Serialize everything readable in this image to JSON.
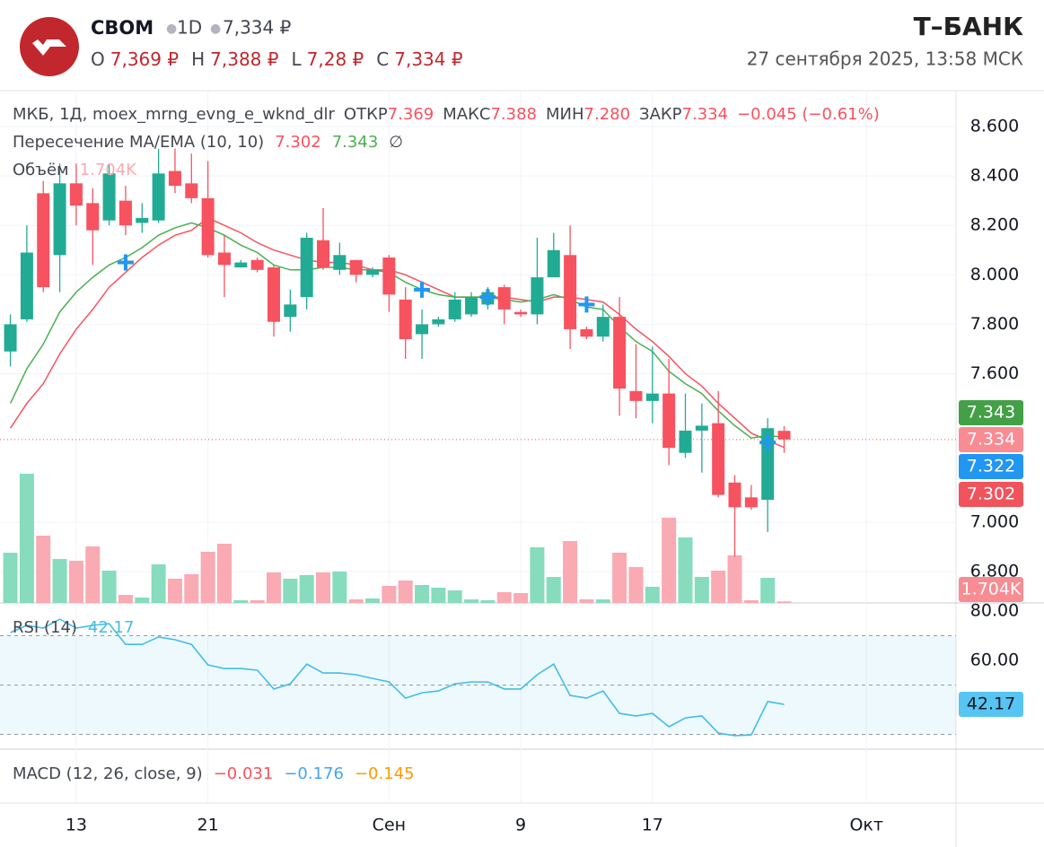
{
  "header": {
    "ticker": "CBOM",
    "interval": "1D",
    "price": "7,334 ₽",
    "ohlc": [
      {
        "label": "O",
        "value": "7,369 ₽"
      },
      {
        "label": "H",
        "value": "7,388 ₽"
      },
      {
        "label": "L",
        "value": "7,28 ₽"
      },
      {
        "label": "C",
        "value": "7,334 ₽"
      }
    ],
    "brand": "Т–БАНК",
    "datetime": "27 сентября 2025, 13:58 МСК"
  },
  "chart_data": [
    {
      "type": "candlestick",
      "up_color": "#22ab94",
      "down_color": "#f7525f",
      "legend": {
        "symbol": "МКБ, 1Д, moex_mrng_evng_e_wknd_dlr",
        "fields": [
          {
            "name": "ОТКР",
            "value": "7.369"
          },
          {
            "name": "МАКС",
            "value": "7.388"
          },
          {
            "name": "МИН",
            "value": "7.280"
          },
          {
            "name": "ЗАКР",
            "value": "7.334"
          }
        ],
        "change": "−0.045 (−0.61%)"
      },
      "indicator": {
        "title": "Пересечение MA/EMA (10, 10)",
        "values": [
          "7.302",
          "7.343"
        ],
        "symbol": "∅"
      },
      "open": [
        7.69,
        7.82,
        8.33,
        8.08,
        8.37,
        8.29,
        8.22,
        8.3,
        8.21,
        8.22,
        8.42,
        8.37,
        8.31,
        8.09,
        8.03,
        8.06,
        8.03,
        7.83,
        7.91,
        8.14,
        8.02,
        8.06,
        8.0,
        8.07,
        7.9,
        7.76,
        7.8,
        7.82,
        7.84,
        7.88,
        7.95,
        7.85,
        7.84,
        7.99,
        8.08,
        7.78,
        7.75,
        7.83,
        7.53,
        7.49,
        7.52,
        7.28,
        7.37,
        7.4,
        7.16,
        7.1,
        7.09,
        7.369
      ],
      "high": [
        7.84,
        8.2,
        8.38,
        8.45,
        8.45,
        8.35,
        8.45,
        8.36,
        8.29,
        8.51,
        8.51,
        8.49,
        8.46,
        8.16,
        8.06,
        8.07,
        8.04,
        7.94,
        8.17,
        8.27,
        8.13,
        8.06,
        8.03,
        8.08,
        7.95,
        7.86,
        7.83,
        7.93,
        7.93,
        7.95,
        7.96,
        7.86,
        8.15,
        8.17,
        8.2,
        7.79,
        7.88,
        7.91,
        7.72,
        7.71,
        7.66,
        7.52,
        7.48,
        7.53,
        7.19,
        7.15,
        7.42,
        7.388
      ],
      "low": [
        7.63,
        7.81,
        7.93,
        7.93,
        8.2,
        8.04,
        8.2,
        8.16,
        8.17,
        8.21,
        8.33,
        8.29,
        8.07,
        7.91,
        8.03,
        8.01,
        7.75,
        7.77,
        7.86,
        8.02,
        8.0,
        7.97,
        7.99,
        7.85,
        7.66,
        7.66,
        7.79,
        7.81,
        7.83,
        7.86,
        7.8,
        7.83,
        7.8,
        7.99,
        7.7,
        7.74,
        7.73,
        7.43,
        7.42,
        7.4,
        7.23,
        7.26,
        7.2,
        7.1,
        6.86,
        7.05,
        6.96,
        7.28
      ],
      "close": [
        7.8,
        8.09,
        7.95,
        8.37,
        8.28,
        8.18,
        8.41,
        8.2,
        8.23,
        8.41,
        8.36,
        8.31,
        8.08,
        8.04,
        8.05,
        8.02,
        7.81,
        7.88,
        8.15,
        8.03,
        8.08,
        8.0,
        8.02,
        7.92,
        7.74,
        7.8,
        7.82,
        7.9,
        7.91,
        7.93,
        7.86,
        7.84,
        7.99,
        8.1,
        7.78,
        7.75,
        7.83,
        7.54,
        7.49,
        7.52,
        7.3,
        7.37,
        7.39,
        7.11,
        7.06,
        7.06,
        7.38,
        7.334
      ],
      "series": [
        {
          "color": "#f7525f",
          "values": [
            7.38,
            7.48,
            7.56,
            7.68,
            7.78,
            7.86,
            7.95,
            8.01,
            8.07,
            8.12,
            8.16,
            8.18,
            8.23,
            8.2,
            8.17,
            8.13,
            8.1,
            8.08,
            8.06,
            8.05,
            8.05,
            8.04,
            8.02,
            8.02,
            8.0,
            7.97,
            7.94,
            7.91,
            7.91,
            7.91,
            7.91,
            7.9,
            7.89,
            7.91,
            7.91,
            7.9,
            7.89,
            7.84,
            7.78,
            7.73,
            7.67,
            7.6,
            7.55,
            7.48,
            7.42,
            7.36,
            7.33,
            7.302
          ]
        },
        {
          "color": "#4caf50",
          "values": [
            7.48,
            7.62,
            7.72,
            7.85,
            7.93,
            7.99,
            8.04,
            8.07,
            8.11,
            8.16,
            8.19,
            8.21,
            8.19,
            8.16,
            8.12,
            8.09,
            8.04,
            8.02,
            8.02,
            8.03,
            8.03,
            8.02,
            8.02,
            8.01,
            7.97,
            7.94,
            7.92,
            7.91,
            7.91,
            7.91,
            7.9,
            7.89,
            7.9,
            7.92,
            7.9,
            7.87,
            7.86,
            7.79,
            7.73,
            7.69,
            7.61,
            7.56,
            7.52,
            7.45,
            7.39,
            7.34,
            7.35,
            7.343
          ]
        }
      ],
      "crosses": {
        "color": "#2196f3",
        "x": [
          7,
          25,
          29,
          35,
          46
        ],
        "values": [
          8.05,
          7.94,
          7.91,
          7.88,
          7.322
        ],
        "label": "7.322"
      },
      "volume": {
        "title": "Объём",
        "label": "1.704K",
        "up_color": "#86dcbd",
        "down_color": "#f9aab2",
        "vlim": [
          0,
          250000
        ],
        "values": [
          56000,
          144000,
          75000,
          49000,
          47000,
          63000,
          36000,
          9000,
          6000,
          43000,
          27000,
          32000,
          57000,
          66000,
          3000,
          3000,
          34000,
          27000,
          31000,
          34000,
          35000,
          4000,
          5000,
          19000,
          25000,
          20000,
          17000,
          14000,
          4000,
          3000,
          12000,
          11000,
          62000,
          29000,
          69000,
          4000,
          4000,
          56000,
          40000,
          18000,
          95000,
          73000,
          29000,
          36000,
          53000,
          3000,
          28000,
          1704
        ]
      },
      "xlim": [
        -0.63,
        57.44
      ],
      "xticks": [
        {
          "value": 4,
          "label": "13"
        },
        {
          "value": 12,
          "label": "21"
        },
        {
          "value": 23,
          "label": "Сен"
        },
        {
          "value": 31,
          "label": "9"
        },
        {
          "value": 39,
          "label": "17"
        },
        {
          "value": 52,
          "label": "Окт"
        }
      ],
      "ylim": [
        6.673,
        8.745
      ],
      "yticks": [
        {
          "value": 8.6,
          "label": "8.600"
        },
        {
          "value": 8.4,
          "label": "8.400"
        },
        {
          "value": 8.2,
          "label": "8.200"
        },
        {
          "value": 8.0,
          "label": "8.000"
        },
        {
          "value": 7.8,
          "label": "7.800"
        },
        {
          "value": 7.6,
          "label": "7.600"
        },
        {
          "value": 7.0,
          "label": "7.000"
        },
        {
          "value": 6.8,
          "label": "6.800"
        }
      ],
      "grid": true
    },
    {
      "type": "line",
      "title": "RSI (14)",
      "value_label": "42.17",
      "color": "#42bde8",
      "values": [
        71.3,
        74.2,
        73.1,
        76.7,
        73.1,
        74.2,
        74.9,
        66.5,
        66.5,
        69.5,
        68.4,
        66.5,
        58.2,
        56.7,
        56.7,
        56.0,
        48.4,
        50.5,
        58.5,
        54.9,
        54.9,
        54.2,
        52.7,
        51.3,
        44.7,
        46.9,
        47.6,
        50.5,
        51.3,
        51.3,
        48.4,
        48.4,
        54.2,
        58.5,
        45.8,
        44.7,
        47.6,
        38.5,
        37.5,
        38.5,
        33.1,
        36.7,
        37.5,
        30.5,
        29.5,
        29.8,
        43.3,
        42.17
      ],
      "ylim": [
        24,
        83.3
      ],
      "yticks": [
        {
          "value": 80,
          "label": "80.00"
        },
        {
          "value": 60,
          "label": "60.00"
        }
      ],
      "bands": [
        70,
        50,
        30
      ]
    },
    {
      "type": "line",
      "title": "MACD (12, 26, close, 9)",
      "legend_values": [
        {
          "value": "−0.031",
          "color": "#f7525f"
        },
        {
          "value": "−0.176",
          "color": "#42a5f5"
        },
        {
          "value": "−0.145",
          "color": "#ff9800"
        }
      ]
    }
  ]
}
